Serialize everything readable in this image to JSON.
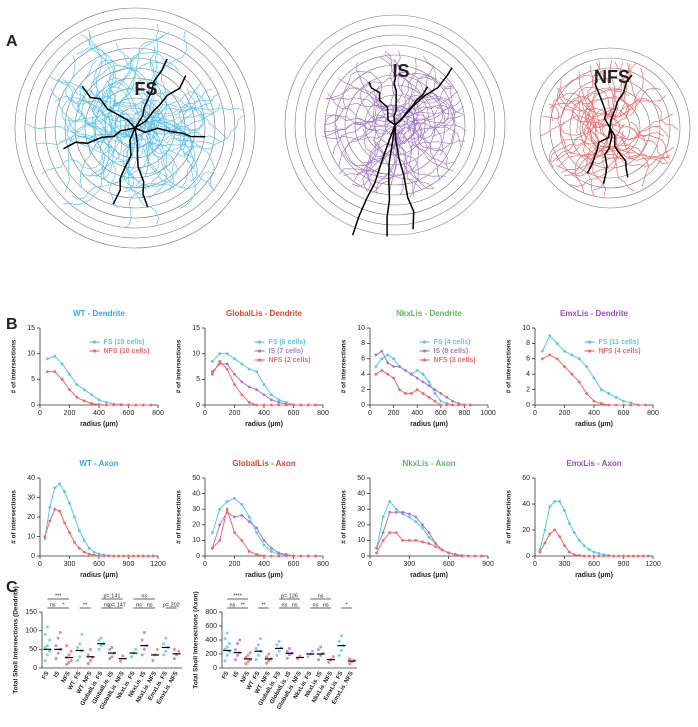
{
  "panels": {
    "a": "A",
    "b": "B",
    "c": "C"
  },
  "tracings": [
    "FS",
    "IS",
    "NFS"
  ],
  "chart_data": [
    {
      "type": "line",
      "title": "WT - Dendrite",
      "title_color": "#3aa6e0",
      "xlabel": "radius (µm)",
      "ylabel": "# of intersections",
      "legend": true,
      "x": [
        50,
        100,
        150,
        200,
        250,
        300,
        350,
        400,
        450,
        500,
        550,
        600,
        650,
        700,
        750
      ],
      "xlim": [
        0,
        800
      ],
      "xticks": [
        0,
        200,
        400,
        600,
        800
      ],
      "ylim": [
        0,
        15
      ],
      "yticks": [
        0,
        5,
        10,
        15
      ],
      "series": [
        {
          "name": "FS (19 cells)",
          "color": "#5bc4ef",
          "values": [
            9,
            9.5,
            8,
            6,
            4,
            3,
            2,
            1,
            0.5,
            0.2,
            0.1,
            0,
            0,
            0,
            0
          ]
        },
        {
          "name": "NFS (10 cells)",
          "color": "#ef6b6b",
          "values": [
            6.5,
            6.5,
            5,
            3,
            1.5,
            0.8,
            0.3,
            0.1,
            0,
            0,
            0,
            0,
            0,
            0,
            0
          ]
        }
      ]
    },
    {
      "type": "line",
      "title": "GlobalLis - Dendrite",
      "title_color": "#e2452f",
      "xlabel": "radius (µm)",
      "ylabel": "# of intersections",
      "legend": true,
      "x": [
        50,
        100,
        150,
        200,
        250,
        300,
        350,
        400,
        450,
        500,
        550,
        600,
        650,
        700,
        750
      ],
      "xlim": [
        0,
        800
      ],
      "xticks": [
        0,
        200,
        400,
        600,
        800
      ],
      "ylim": [
        0,
        15
      ],
      "yticks": [
        0,
        5,
        10,
        15
      ],
      "series": [
        {
          "name": "FS (6 cells)",
          "color": "#5bc4ef",
          "values": [
            8.5,
            10,
            10,
            9,
            8,
            7,
            6.5,
            4,
            2,
            1,
            0.5,
            0,
            0,
            0,
            0
          ]
        },
        {
          "name": "IS (7 cells)",
          "color": "#a77cc6",
          "values": [
            6.5,
            8,
            8,
            6,
            4.5,
            3.5,
            3,
            2,
            1,
            0.5,
            0.2,
            0,
            0,
            0,
            0
          ]
        },
        {
          "name": "NFS (2 cells)",
          "color": "#ef6b6b",
          "values": [
            6,
            8.5,
            7,
            4,
            2,
            0.5,
            0,
            0,
            0,
            0,
            0,
            0,
            0,
            0,
            0
          ]
        }
      ]
    },
    {
      "type": "line",
      "title": "NkxLis - Dendrite",
      "title_color": "#5cb85c",
      "xlabel": "radius (µm)",
      "ylabel": "# of intersections",
      "legend": true,
      "x": [
        50,
        100,
        150,
        200,
        250,
        300,
        350,
        400,
        450,
        500,
        550,
        600,
        650,
        700,
        750,
        800,
        850
      ],
      "xlim": [
        0,
        1000
      ],
      "xticks": [
        0,
        200,
        400,
        600,
        800,
        1000
      ],
      "ylim": [
        0,
        10
      ],
      "yticks": [
        0,
        2,
        4,
        6,
        8,
        10
      ],
      "series": [
        {
          "name": "FS (4 cells)",
          "color": "#5bc4ef",
          "values": [
            5,
            6,
            6.5,
            6,
            5,
            4.5,
            4,
            4.5,
            4,
            3,
            1.5,
            0.5,
            0.2,
            0,
            0,
            0,
            0
          ]
        },
        {
          "name": "IS (8 cells)",
          "color": "#a77cc6",
          "values": [
            6.5,
            7,
            5.5,
            5,
            5,
            4.5,
            4,
            3.5,
            3,
            2.5,
            2,
            1.5,
            1,
            0.5,
            0.2,
            0,
            0
          ]
        },
        {
          "name": "NFS (3 cells)",
          "color": "#ef6b6b",
          "values": [
            4,
            4.5,
            4,
            3.5,
            2,
            1.5,
            1.5,
            2,
            1.5,
            1,
            0.5,
            0,
            0,
            0,
            0,
            0,
            0
          ]
        }
      ]
    },
    {
      "type": "line",
      "title": "EmxLis - Dendrite",
      "title_color": "#9b4dbb",
      "xlabel": "radius (µm)",
      "ylabel": "# of intersections",
      "legend": true,
      "x": [
        50,
        100,
        150,
        200,
        250,
        300,
        350,
        400,
        450,
        500,
        550,
        600,
        650,
        700,
        750
      ],
      "xlim": [
        0,
        800
      ],
      "xticks": [
        0,
        200,
        400,
        600,
        800
      ],
      "ylim": [
        0,
        10
      ],
      "yticks": [
        0,
        2,
        4,
        6,
        8,
        10
      ],
      "series": [
        {
          "name": "FS (11 cells)",
          "color": "#5bc4ef",
          "values": [
            7,
            9,
            8,
            7,
            6.5,
            6,
            5,
            3.5,
            2,
            1.5,
            1,
            0.5,
            0.3,
            0,
            0
          ]
        },
        {
          "name": "NFS (4 cells)",
          "color": "#ef6b6b",
          "values": [
            6,
            6.5,
            6,
            5,
            4,
            3,
            1.5,
            0.5,
            0.2,
            0,
            0,
            0,
            0,
            0,
            0
          ]
        }
      ]
    },
    {
      "type": "line",
      "title": "WT - Axon",
      "title_color": "#3aa6e0",
      "xlabel": "radius (µm)",
      "ylabel": "# of intersections",
      "legend": false,
      "x": [
        50,
        100,
        150,
        200,
        250,
        300,
        350,
        400,
        450,
        500,
        550,
        600,
        650,
        700,
        750,
        800,
        850,
        900,
        950,
        1000,
        1050,
        1100,
        1150
      ],
      "xlim": [
        0,
        1200
      ],
      "xticks": [
        0,
        300,
        600,
        900,
        1200
      ],
      "ylim": [
        0,
        40
      ],
      "yticks": [
        0,
        10,
        20,
        30,
        40
      ],
      "series": [
        {
          "name": "FS",
          "color": "#5bc4ef",
          "values": [
            9,
            25,
            35,
            37,
            33,
            27,
            20,
            13,
            8,
            4,
            2,
            1,
            0.5,
            0.2,
            0,
            0,
            0,
            0,
            0,
            0,
            0,
            0,
            0
          ]
        },
        {
          "name": "NFS",
          "color": "#ef6b6b",
          "values": [
            10,
            18,
            24,
            23,
            17,
            12,
            7,
            4,
            2,
            1,
            0.5,
            0,
            0,
            0,
            0,
            0,
            0,
            0,
            0,
            0,
            0,
            0,
            0
          ]
        }
      ]
    },
    {
      "type": "line",
      "title": "GlobalLis - Axon",
      "title_color": "#e2452f",
      "xlabel": "radius (µm)",
      "ylabel": "# of intersections",
      "legend": false,
      "x": [
        50,
        100,
        150,
        200,
        250,
        300,
        350,
        400,
        450,
        500,
        550,
        600,
        650,
        700,
        750
      ],
      "xlim": [
        0,
        800
      ],
      "xticks": [
        0,
        200,
        400,
        600,
        800
      ],
      "ylim": [
        0,
        50
      ],
      "yticks": [
        0,
        10,
        20,
        30,
        40,
        50
      ],
      "series": [
        {
          "name": "FS",
          "color": "#5bc4ef",
          "values": [
            15,
            30,
            35,
            37,
            33,
            25,
            15,
            7,
            3,
            1,
            0.5,
            0,
            0,
            0,
            0
          ]
        },
        {
          "name": "IS",
          "color": "#a77cc6",
          "values": [
            5,
            20,
            28,
            25,
            26,
            22,
            18,
            10,
            5,
            2,
            1,
            0,
            0,
            0,
            0
          ]
        },
        {
          "name": "NFS",
          "color": "#ef6b6b",
          "values": [
            5,
            10,
            30,
            15,
            10,
            3,
            1,
            0,
            0,
            0,
            0,
            0,
            0,
            0,
            0
          ]
        }
      ]
    },
    {
      "type": "line",
      "title": "NkxLis - Axon",
      "title_color": "#5cb85c",
      "xlabel": "radius (µm)",
      "ylabel": "# of intersections",
      "legend": false,
      "x": [
        50,
        100,
        150,
        200,
        250,
        300,
        350,
        400,
        450,
        500,
        550,
        600,
        650,
        700,
        750,
        800,
        850
      ],
      "xlim": [
        0,
        900
      ],
      "xticks": [
        0,
        300,
        600,
        900
      ],
      "ylim": [
        0,
        50
      ],
      "yticks": [
        0,
        10,
        20,
        30,
        40,
        50
      ],
      "series": [
        {
          "name": "FS",
          "color": "#5bc4ef",
          "values": [
            5,
            25,
            35,
            30,
            27,
            25,
            22,
            18,
            12,
            8,
            4,
            2,
            1,
            0.5,
            0,
            0,
            0
          ]
        },
        {
          "name": "IS",
          "color": "#a77cc6",
          "values": [
            5,
            15,
            28,
            28,
            28,
            27,
            25,
            20,
            15,
            8,
            4,
            2,
            1,
            0,
            0,
            0,
            0
          ]
        },
        {
          "name": "NFS",
          "color": "#ef6b6b",
          "values": [
            2,
            10,
            15,
            15,
            10,
            10,
            10,
            9,
            8,
            6,
            4,
            2,
            1,
            0,
            0,
            0,
            0
          ]
        }
      ]
    },
    {
      "type": "line",
      "title": "EmxLis - Axon",
      "title_color": "#9b4dbb",
      "xlabel": "radius (µm)",
      "ylabel": "# of intersections",
      "legend": false,
      "x": [
        50,
        100,
        150,
        200,
        250,
        300,
        350,
        400,
        450,
        500,
        550,
        600,
        650,
        700,
        750,
        800,
        850,
        900,
        950,
        1000,
        1050,
        1100,
        1150
      ],
      "xlim": [
        0,
        1200
      ],
      "xticks": [
        0,
        300,
        600,
        900,
        1200
      ],
      "ylim": [
        0,
        60
      ],
      "yticks": [
        0,
        20,
        40,
        60
      ],
      "series": [
        {
          "name": "FS",
          "color": "#5bc4ef",
          "values": [
            5,
            20,
            38,
            42,
            42,
            35,
            25,
            18,
            12,
            8,
            5,
            3,
            2,
            1,
            0.5,
            0,
            0,
            0,
            0,
            0,
            0,
            0,
            0
          ]
        },
        {
          "name": "NFS",
          "color": "#ef6b6b",
          "values": [
            3,
            10,
            17,
            20,
            15,
            8,
            3,
            1,
            0.5,
            0,
            0,
            0,
            0,
            0,
            0,
            0,
            0,
            0,
            0,
            0,
            0,
            0,
            0
          ]
        }
      ]
    },
    {
      "type": "dot",
      "ylabel": "Total Sholl Intersections (Dendrite)",
      "categories": [
        "FS",
        "IS",
        "NFS",
        "WT_FS",
        "WT_NFS",
        "GlobalLis_FS",
        "GlobalLis_IS",
        "GlobalLis_NFS",
        "NkxLis_FS",
        "NkxLis_IS",
        "NkxLis_NFS",
        "EmxLis_FS",
        "EmxLis_NFS"
      ],
      "colors": [
        "#5bc4ef",
        "#a77cc6",
        "#ef6b6b",
        "#5bc4ef",
        "#ef6b6b",
        "#5bc4ef",
        "#a77cc6",
        "#ef6b6b",
        "#5bc4ef",
        "#a77cc6",
        "#ef6b6b",
        "#5bc4ef",
        "#ef6b6b"
      ],
      "points": [
        [
          20,
          35,
          45,
          55,
          60,
          75,
          90,
          110
        ],
        [
          25,
          40,
          50,
          60,
          80,
          95
        ],
        [
          10,
          15,
          20,
          28,
          35,
          45,
          60
        ],
        [
          20,
          30,
          45,
          55,
          65,
          90
        ],
        [
          12,
          20,
          28,
          35,
          50
        ],
        [
          50,
          60,
          65,
          75,
          80
        ],
        [
          25,
          30,
          40,
          50,
          55
        ],
        [
          18,
          32
        ],
        [
          30,
          40,
          50
        ],
        [
          35,
          50,
          60,
          75,
          95
        ],
        [
          20,
          35,
          50
        ],
        [
          35,
          45,
          55,
          65,
          80
        ],
        [
          25,
          35,
          45,
          50
        ]
      ],
      "means": [
        50,
        50,
        28,
        47,
        30,
        65,
        40,
        25,
        40,
        60,
        35,
        55,
        38
      ],
      "ylim": [
        0,
        150
      ],
      "yticks": [
        0,
        50,
        100,
        150
      ],
      "annotations": [
        "***",
        "ns",
        "*",
        "**",
        "p=.141",
        "ns",
        "p=.147",
        "ns",
        "ns",
        "ns",
        "p=.202"
      ]
    },
    {
      "type": "dot",
      "ylabel": "Total Sholl Intersections (Axon)",
      "categories": [
        "FS",
        "IS",
        "NFS",
        "WT_FS",
        "WT_NFS",
        "GlobalLis_FS",
        "GlobalLis_IS",
        "GlobalLis_NFS",
        "NkxLis_FS",
        "NkxLis_IS",
        "NkxLis_NFS",
        "EmxLis_FS",
        "EmxLis_NFS"
      ],
      "colors": [
        "#5bc4ef",
        "#a77cc6",
        "#ef6b6b",
        "#5bc4ef",
        "#ef6b6b",
        "#5bc4ef",
        "#a77cc6",
        "#ef6b6b",
        "#5bc4ef",
        "#a77cc6",
        "#ef6b6b",
        "#5bc4ef",
        "#ef6b6b"
      ],
      "points": [
        [
          100,
          180,
          230,
          270,
          300,
          350,
          420,
          500
        ],
        [
          120,
          180,
          220,
          260,
          350,
          400
        ],
        [
          60,
          90,
          120,
          150,
          180,
          220
        ],
        [
          120,
          180,
          240,
          280,
          330,
          420
        ],
        [
          70,
          100,
          130,
          160,
          200
        ],
        [
          180,
          240,
          290,
          330,
          380
        ],
        [
          140,
          190,
          210,
          240,
          280
        ],
        [
          130,
          170
        ],
        [
          160,
          200,
          240
        ],
        [
          120,
          180,
          210,
          260,
          300
        ],
        [
          80,
          120,
          160
        ],
        [
          180,
          250,
          320,
          380,
          460
        ],
        [
          60,
          90,
          110,
          130
        ]
      ],
      "means": [
        250,
        220,
        130,
        240,
        130,
        280,
        210,
        150,
        200,
        200,
        120,
        320,
        100
      ],
      "ylim": [
        0,
        800
      ],
      "yticks": [
        0,
        200,
        400,
        600,
        800
      ],
      "annotations": [
        "****",
        "ns",
        "**",
        "**",
        "p=.126",
        "ns",
        "ns",
        "ns",
        "ns",
        "ns",
        "*"
      ]
    }
  ]
}
